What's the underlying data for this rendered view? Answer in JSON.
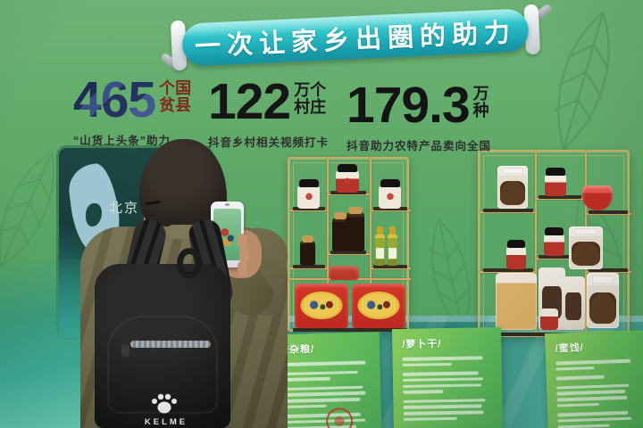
{
  "banner": {
    "text": "一次让家乡出圈的助力"
  },
  "stats": [
    {
      "value": "465",
      "unit_top": "个国",
      "unit_bottom": "贫县",
      "caption": "“山货上头条”助力"
    },
    {
      "value": "122",
      "unit_top": "万个",
      "unit_bottom": "村庄",
      "caption": "抖音乡村相关视频打卡"
    },
    {
      "value": "179.3",
      "unit_top": "万",
      "unit_bottom": "种",
      "caption": "抖音助力农特产品卖向全国"
    }
  ],
  "left_screen": {
    "label": "北京"
  },
  "photographer": {
    "backpack_brand": "KELME"
  },
  "product_cards": [
    {
      "title": "/紫米杂粮/"
    },
    {
      "title": "/萝卜干/"
    },
    {
      "title": "/蜜饯/"
    }
  ],
  "colors": {
    "wall_green": "#5ea968",
    "banner_tube": "#2cc3c9",
    "card_green": "#63bb5a",
    "shelf_gold": "#cfa966",
    "counter_teal": "#3b958a",
    "stat_navy": "#273560",
    "stat_maroon": "#7b2c1e"
  }
}
